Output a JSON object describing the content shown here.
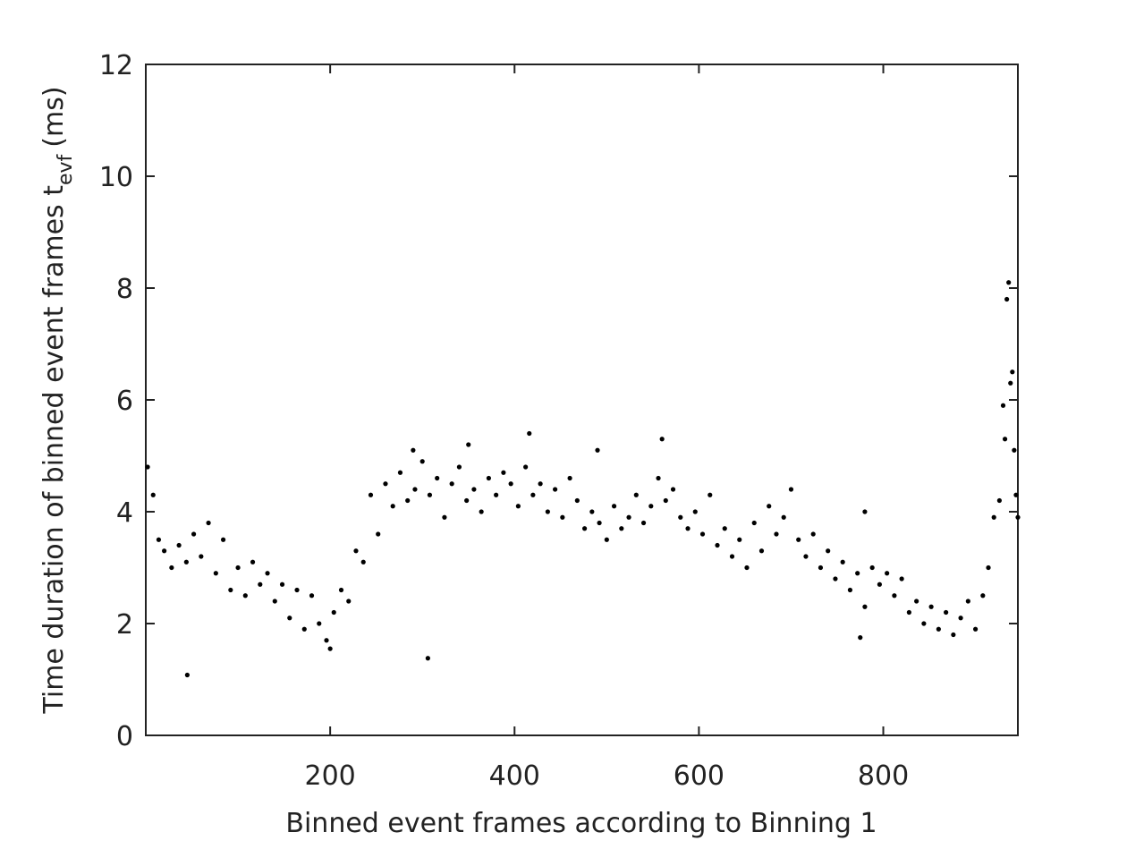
{
  "chart_data": {
    "type": "scatter",
    "xlabel": "Binned event frames according to Binning 1",
    "ylabel": {
      "main": "Time duration of binned event frames t",
      "subscript": "evf",
      "unit": "(ms)"
    },
    "color": "#000000",
    "xlim": [
      0,
      946
    ],
    "xticks": [
      200,
      400,
      600,
      800
    ],
    "ylim": [
      0,
      12
    ],
    "yticks": [
      0,
      2,
      4,
      6,
      8,
      10,
      12
    ],
    "x": [
      2,
      8,
      14,
      20,
      28,
      36,
      44,
      52,
      60,
      68,
      76,
      84,
      92,
      100,
      108,
      116,
      124,
      132,
      140,
      148,
      156,
      164,
      172,
      180,
      188,
      196,
      204,
      212,
      220,
      228,
      236,
      244,
      252,
      260,
      268,
      276,
      284,
      292,
      300,
      308,
      316,
      324,
      332,
      340,
      348,
      356,
      364,
      372,
      380,
      388,
      396,
      404,
      412,
      420,
      428,
      436,
      444,
      452,
      460,
      468,
      476,
      484,
      492,
      500,
      508,
      516,
      524,
      532,
      540,
      548,
      556,
      564,
      572,
      580,
      588,
      596,
      604,
      612,
      620,
      628,
      636,
      644,
      652,
      660,
      668,
      676,
      684,
      692,
      700,
      708,
      716,
      724,
      732,
      740,
      748,
      756,
      764,
      772,
      780,
      788,
      796,
      804,
      812,
      820,
      828,
      836,
      844,
      852,
      860,
      868,
      876,
      884,
      892,
      900,
      908,
      914,
      920,
      926,
      932,
      936,
      940,
      944,
      45,
      306,
      934,
      938,
      942,
      946,
      930,
      200,
      560,
      416,
      350,
      290,
      490,
      775,
      780
    ],
    "y": [
      4.8,
      4.3,
      3.5,
      3.3,
      3.0,
      3.4,
      3.1,
      3.6,
      3.2,
      3.8,
      2.9,
      3.5,
      2.6,
      3.0,
      2.5,
      3.1,
      2.7,
      2.9,
      2.4,
      2.7,
      2.1,
      2.6,
      1.9,
      2.5,
      2.0,
      1.7,
      2.2,
      2.6,
      2.4,
      3.3,
      3.1,
      4.3,
      3.6,
      4.5,
      4.1,
      4.7,
      4.2,
      4.4,
      4.9,
      4.3,
      4.6,
      3.9,
      4.5,
      4.8,
      4.2,
      4.4,
      4.0,
      4.6,
      4.3,
      4.7,
      4.5,
      4.1,
      4.8,
      4.3,
      4.5,
      4.0,
      4.4,
      3.9,
      4.6,
      4.2,
      3.7,
      4.0,
      3.8,
      3.5,
      4.1,
      3.7,
      3.9,
      4.3,
      3.8,
      4.1,
      4.6,
      4.2,
      4.4,
      3.9,
      3.7,
      4.0,
      3.6,
      4.3,
      3.4,
      3.7,
      3.2,
      3.5,
      3.0,
      3.8,
      3.3,
      4.1,
      3.6,
      3.9,
      4.4,
      3.5,
      3.2,
      3.6,
      3.0,
      3.3,
      2.8,
      3.1,
      2.6,
      2.9,
      2.3,
      3.0,
      2.7,
      2.9,
      2.5,
      2.8,
      2.2,
      2.4,
      2.0,
      2.3,
      1.9,
      2.2,
      1.8,
      2.1,
      2.4,
      1.9,
      2.5,
      3.0,
      3.9,
      4.2,
      5.3,
      8.1,
      6.5,
      4.3,
      1.08,
      1.38,
      7.8,
      6.3,
      5.1,
      3.9,
      5.9,
      1.55,
      5.3,
      5.4,
      5.2,
      5.1,
      5.1,
      1.75,
      4.0
    ]
  }
}
